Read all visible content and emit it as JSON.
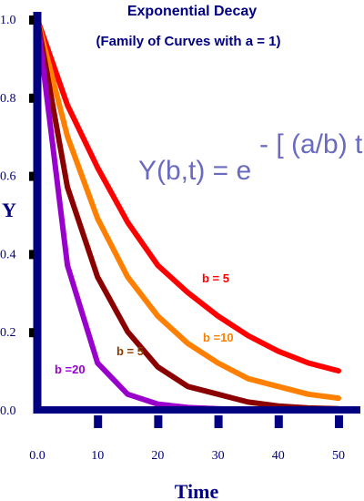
{
  "chart_data": {
    "type": "line",
    "title": "Exponential Decay",
    "subtitle": "(Family of Curves with a  =  1)",
    "formula": {
      "base": "Y(b,t) = e",
      "exponent": "- [ (a/b) t ]"
    },
    "xlabel": "Time",
    "ylabel": "Y",
    "xlim": [
      0,
      50
    ],
    "ylim": [
      0,
      1.0
    ],
    "x_ticks": [
      "0.0",
      "10",
      "20",
      "30",
      "40",
      "50"
    ],
    "y_ticks": [
      "0.0",
      "0.2",
      "0.4",
      "0.6",
      "0.8",
      "1.0"
    ],
    "grid": false,
    "x": [
      0,
      5,
      10,
      15,
      20,
      25,
      30,
      35,
      40,
      45,
      50
    ],
    "series": [
      {
        "label": "b = 5",
        "b": 5,
        "color": "#ff0000",
        "values": [
          1.0,
          0.78,
          0.62,
          0.48,
          0.37,
          0.3,
          0.24,
          0.19,
          0.15,
          0.12,
          0.1
        ]
      },
      {
        "label": "b =10",
        "b": 10,
        "color": "#ff7f00",
        "values": [
          1.0,
          0.7,
          0.49,
          0.34,
          0.24,
          0.17,
          0.12,
          0.08,
          0.06,
          0.04,
          0.03
        ]
      },
      {
        "label": "b = 5",
        "b": 5,
        "color": "#8b0000",
        "values": [
          1.0,
          0.57,
          0.34,
          0.2,
          0.11,
          0.06,
          0.04,
          0.02,
          0.01,
          0.005,
          0.003
        ]
      },
      {
        "label": "b =20",
        "b": 20,
        "color": "#9900cc",
        "values": [
          1.0,
          0.37,
          0.12,
          0.04,
          0.015,
          0.006,
          0.003,
          0.001,
          0.0,
          0.0,
          0.0
        ]
      }
    ]
  },
  "colors": {
    "axis": "#000080",
    "title": "#000080"
  }
}
